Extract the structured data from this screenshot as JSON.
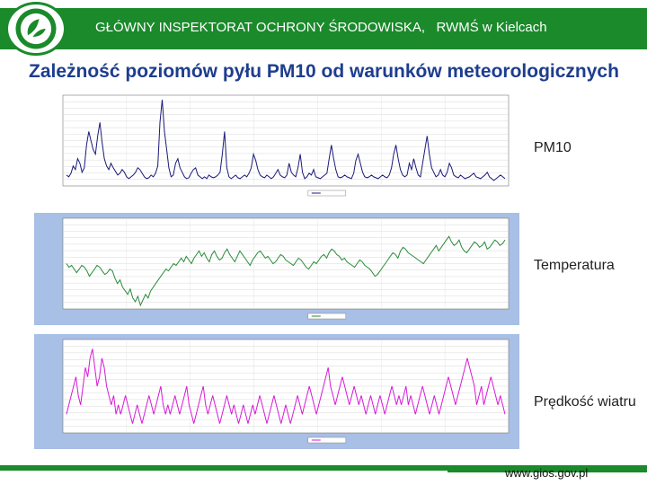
{
  "header": {
    "title": "GŁÓWNY INSPEKTORAT OCHRONY ŚRODOWISKA,   RWMŚ w Kielcach",
    "brand_color": "#1a8a2a"
  },
  "slide": {
    "title": "Zależność poziomów pyłu PM10 od warunków meteorologicznych"
  },
  "footer": {
    "url": "www.gios.gov.pl"
  },
  "chart_data": [
    {
      "type": "line",
      "label": "PM10",
      "background": "#ffffff",
      "line_color": "#1a1a7a",
      "ylim": [
        0,
        100
      ],
      "grid": true,
      "values": [
        12,
        10,
        14,
        22,
        18,
        30,
        25,
        15,
        20,
        45,
        60,
        50,
        40,
        35,
        55,
        70,
        48,
        30,
        22,
        18,
        25,
        20,
        16,
        12,
        14,
        18,
        15,
        10,
        8,
        10,
        12,
        15,
        20,
        18,
        14,
        10,
        8,
        9,
        12,
        10,
        14,
        22,
        70,
        95,
        60,
        40,
        20,
        10,
        12,
        25,
        30,
        20,
        15,
        10,
        8,
        9,
        14,
        18,
        20,
        12,
        10,
        8,
        10,
        8,
        12,
        10,
        9,
        10,
        12,
        15,
        35,
        60,
        20,
        10,
        8,
        10,
        12,
        9,
        8,
        10,
        12,
        10,
        14,
        20,
        35,
        28,
        18,
        12,
        10,
        9,
        12,
        10,
        8,
        10,
        14,
        18,
        12,
        10,
        9,
        12,
        25,
        15,
        12,
        10,
        20,
        35,
        15,
        8,
        10,
        14,
        12,
        18,
        10,
        9,
        8,
        10,
        12,
        14,
        30,
        45,
        30,
        18,
        10,
        9,
        10,
        12,
        10,
        9,
        8,
        14,
        28,
        35,
        25,
        15,
        10,
        9,
        10,
        12,
        10,
        9,
        8,
        10,
        12,
        10,
        9,
        12,
        20,
        35,
        45,
        30,
        18,
        12,
        10,
        12,
        25,
        18,
        30,
        20,
        12,
        10,
        25,
        40,
        55,
        35,
        20,
        15,
        10,
        12,
        18,
        12,
        10,
        15,
        25,
        20,
        12,
        10,
        9,
        12,
        10,
        8,
        9,
        10,
        12,
        14,
        10,
        9,
        8,
        10,
        12,
        15,
        10,
        8,
        6,
        8,
        10,
        12,
        10,
        8
      ],
      "peaks": [
        {
          "index": 43,
          "value": 95
        },
        {
          "index": 71,
          "value": 60
        },
        {
          "index": 162,
          "value": 55
        }
      ]
    },
    {
      "type": "line",
      "label": "Temperatura",
      "background": "#a8bfe6",
      "line_color": "#2a8a3a",
      "ylim": [
        -20,
        30
      ],
      "grid": true,
      "values": [
        5,
        3,
        4,
        2,
        0,
        2,
        4,
        3,
        1,
        -2,
        0,
        2,
        4,
        3,
        1,
        -1,
        0,
        2,
        1,
        -3,
        -6,
        -4,
        -8,
        -10,
        -12,
        -9,
        -14,
        -16,
        -13,
        -18,
        -15,
        -12,
        -14,
        -10,
        -8,
        -6,
        -4,
        -2,
        0,
        2,
        1,
        3,
        5,
        4,
        6,
        8,
        6,
        9,
        7,
        5,
        8,
        10,
        12,
        9,
        11,
        8,
        6,
        10,
        12,
        9,
        7,
        8,
        11,
        13,
        10,
        8,
        6,
        9,
        12,
        10,
        8,
        6,
        4,
        7,
        9,
        11,
        12,
        10,
        8,
        9,
        7,
        5,
        6,
        8,
        10,
        9,
        7,
        6,
        5,
        4,
        6,
        8,
        7,
        5,
        3,
        2,
        4,
        6,
        5,
        7,
        9,
        10,
        8,
        11,
        13,
        12,
        10,
        9,
        7,
        8,
        6,
        5,
        4,
        3,
        5,
        7,
        6,
        4,
        3,
        2,
        0,
        -2,
        -1,
        1,
        3,
        5,
        7,
        9,
        11,
        10,
        8,
        12,
        14,
        13,
        11,
        10,
        9,
        8,
        7,
        6,
        5,
        7,
        9,
        11,
        13,
        15,
        12,
        14,
        16,
        18,
        20,
        17,
        15,
        16,
        18,
        14,
        12,
        11,
        13,
        15,
        17,
        16,
        14,
        15,
        17,
        13,
        14,
        16,
        18,
        17,
        15,
        16,
        18
      ]
    },
    {
      "type": "line",
      "label": "Prędkość wiatru",
      "background": "#a8bfe6",
      "line_color": "#d81ad8",
      "ylim": [
        0,
        10
      ],
      "grid": true,
      "values": [
        2,
        3,
        4,
        5,
        6,
        4,
        3,
        5,
        7,
        6,
        8,
        9,
        7,
        5,
        6,
        8,
        7,
        5,
        4,
        3,
        4,
        2,
        3,
        2,
        3,
        4,
        3,
        2,
        1,
        2,
        3,
        2,
        1,
        2,
        3,
        4,
        3,
        2,
        3,
        4,
        5,
        3,
        2,
        3,
        2,
        3,
        4,
        3,
        2,
        3,
        4,
        5,
        3,
        2,
        1,
        2,
        3,
        4,
        5,
        3,
        2,
        3,
        4,
        3,
        2,
        1,
        2,
        3,
        4,
        3,
        2,
        3,
        2,
        1,
        2,
        3,
        2,
        1,
        2,
        3,
        2,
        3,
        4,
        3,
        2,
        1,
        2,
        3,
        4,
        3,
        2,
        1,
        2,
        3,
        2,
        1,
        2,
        3,
        4,
        3,
        2,
        3,
        4,
        5,
        4,
        3,
        2,
        3,
        4,
        5,
        6,
        7,
        5,
        4,
        3,
        4,
        5,
        6,
        5,
        4,
        3,
        4,
        5,
        4,
        3,
        4,
        3,
        2,
        3,
        4,
        3,
        2,
        3,
        4,
        3,
        2,
        3,
        4,
        5,
        4,
        3,
        4,
        3,
        4,
        5,
        3,
        4,
        3,
        2,
        3,
        4,
        5,
        4,
        3,
        2,
        3,
        4,
        3,
        2,
        3,
        4,
        5,
        6,
        5,
        4,
        3,
        4,
        5,
        6,
        7,
        8,
        7,
        6,
        5,
        3,
        4,
        5,
        3,
        4,
        5,
        6,
        5,
        4,
        3,
        4,
        3,
        2
      ]
    }
  ]
}
